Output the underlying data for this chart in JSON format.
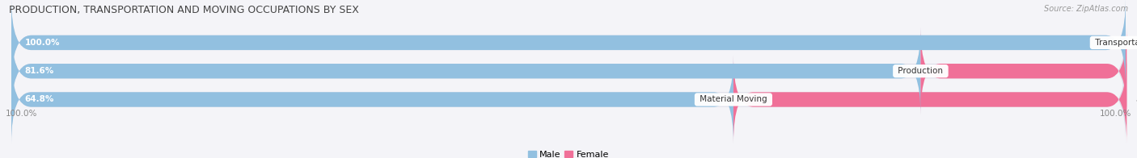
{
  "title": "PRODUCTION, TRANSPORTATION AND MOVING OCCUPATIONS BY SEX",
  "source": "Source: ZipAtlas.com",
  "categories": [
    "Transportation",
    "Production",
    "Material Moving"
  ],
  "male_pct": [
    100.0,
    81.6,
    64.8
  ],
  "female_pct": [
    0.0,
    18.5,
    35.3
  ],
  "male_color": "#92c0e0",
  "female_color": "#f07098",
  "bar_bg_color": "#dcdce8",
  "bar_height": 0.52,
  "figsize": [
    14.06,
    1.96
  ],
  "dpi": 100,
  "legend_male_label": "Male",
  "legend_female_label": "Female",
  "left_label": "100.0%",
  "right_label": "100.0%",
  "title_fontsize": 9.0,
  "bar_label_fontsize": 7.5,
  "category_fontsize": 7.5,
  "legend_fontsize": 8,
  "source_fontsize": 7.0
}
